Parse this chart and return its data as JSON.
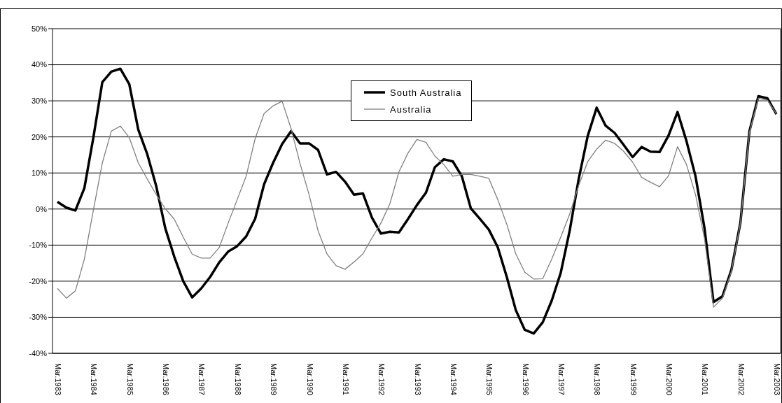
{
  "chart_data": {
    "type": "line",
    "categories": [
      "Mar.1983",
      null,
      null,
      null,
      "Mar.1984",
      null,
      null,
      null,
      "Mar.1985",
      null,
      null,
      null,
      "Mar.1986",
      null,
      null,
      null,
      "Mar.1987",
      null,
      null,
      null,
      "Mar.1988",
      null,
      null,
      null,
      "Mar.1989",
      null,
      null,
      null,
      "Mar.1990",
      null,
      null,
      null,
      "Mar.1991",
      null,
      null,
      null,
      "Mar.1992",
      null,
      null,
      null,
      "Mar.1993",
      null,
      null,
      null,
      "Mar.1994",
      null,
      null,
      null,
      "Mar.1995",
      null,
      null,
      null,
      "Mar.1996",
      null,
      null,
      null,
      "Mar.1997",
      null,
      null,
      null,
      "Mar.1998",
      null,
      null,
      null,
      "Mar.1999",
      null,
      null,
      null,
      "Mar.2000",
      null,
      null,
      null,
      "Mar.2001",
      null,
      null,
      null,
      "Mar.2002",
      null,
      null,
      null,
      "Mar.2003"
    ],
    "series": [
      {
        "name": "South Australia",
        "color": "#000000",
        "values": [
          2.0,
          0.4,
          -0.4,
          5.8,
          19.8,
          35.2,
          38.1,
          38.9,
          34.6,
          22.0,
          15.2,
          6.3,
          -5.3,
          -13.2,
          -20.0,
          -24.5,
          -22.0,
          -18.8,
          -14.8,
          -11.8,
          -10.3,
          -7.6,
          -2.7,
          6.9,
          12.8,
          18.0,
          21.6,
          18.2,
          18.2,
          16.4,
          9.6,
          10.3,
          7.6,
          4.0,
          4.3,
          -2.4,
          -6.8,
          -6.3,
          -6.5,
          -2.8,
          1.1,
          4.5,
          11.6,
          13.8,
          13.2,
          9.1,
          0.2,
          -2.7,
          -5.7,
          -10.6,
          -18.8,
          -28.0,
          -33.5,
          -34.5,
          -31.4,
          -25.4,
          -17.7,
          -6.0,
          8.3,
          20.2,
          28.1,
          23.1,
          21.1,
          17.8,
          14.4,
          17.2,
          15.9,
          15.8,
          20.4,
          26.9,
          18.8,
          9.1,
          -5.3,
          -25.8,
          -24.2,
          -16.8,
          -3.7,
          21.6,
          31.3,
          30.7,
          26.3
        ]
      },
      {
        "name": "Australia",
        "color": "#808080",
        "values": [
          -22.0,
          -24.7,
          -22.7,
          -13.9,
          -0.3,
          12.8,
          21.6,
          23.0,
          19.8,
          12.8,
          8.3,
          4.0,
          0.1,
          -2.8,
          -7.8,
          -12.5,
          -13.6,
          -13.6,
          -10.7,
          -3.9,
          2.6,
          9.1,
          19.5,
          26.5,
          28.6,
          29.9,
          22.3,
          12.6,
          4.0,
          -6.0,
          -12.5,
          -15.7,
          -16.7,
          -14.7,
          -12.4,
          -8.0,
          -3.9,
          1.5,
          10.3,
          15.5,
          19.3,
          18.5,
          14.7,
          12.3,
          9.1,
          9.6,
          9.6,
          9.1,
          8.5,
          2.6,
          -4.2,
          -12.4,
          -17.5,
          -19.4,
          -19.3,
          -13.9,
          -7.8,
          -1.4,
          6.5,
          13.1,
          16.6,
          19.1,
          18.2,
          16.0,
          13.0,
          8.8,
          7.4,
          6.2,
          9.2,
          17.3,
          12.3,
          4.0,
          -8.2,
          -27.2,
          -24.7,
          -17.2,
          -3.9,
          21.3,
          30.7,
          30.2,
          26.4
        ]
      }
    ],
    "ylim": [
      -40,
      50
    ],
    "yticks": [
      {
        "value": -40,
        "label": "-40%"
      },
      {
        "value": -30,
        "label": "-30%"
      },
      {
        "value": -20,
        "label": "-20%"
      },
      {
        "value": -10,
        "label": "-10%"
      },
      {
        "value": 0,
        "label": "0%"
      },
      {
        "value": 10,
        "label": "10%"
      },
      {
        "value": 20,
        "label": "20%"
      },
      {
        "value": 30,
        "label": "30%"
      },
      {
        "value": 40,
        "label": "40%"
      },
      {
        "value": 50,
        "label": "50%"
      }
    ],
    "grid": "y",
    "legend": "top",
    "marker": "none",
    "line_style": "solid"
  }
}
